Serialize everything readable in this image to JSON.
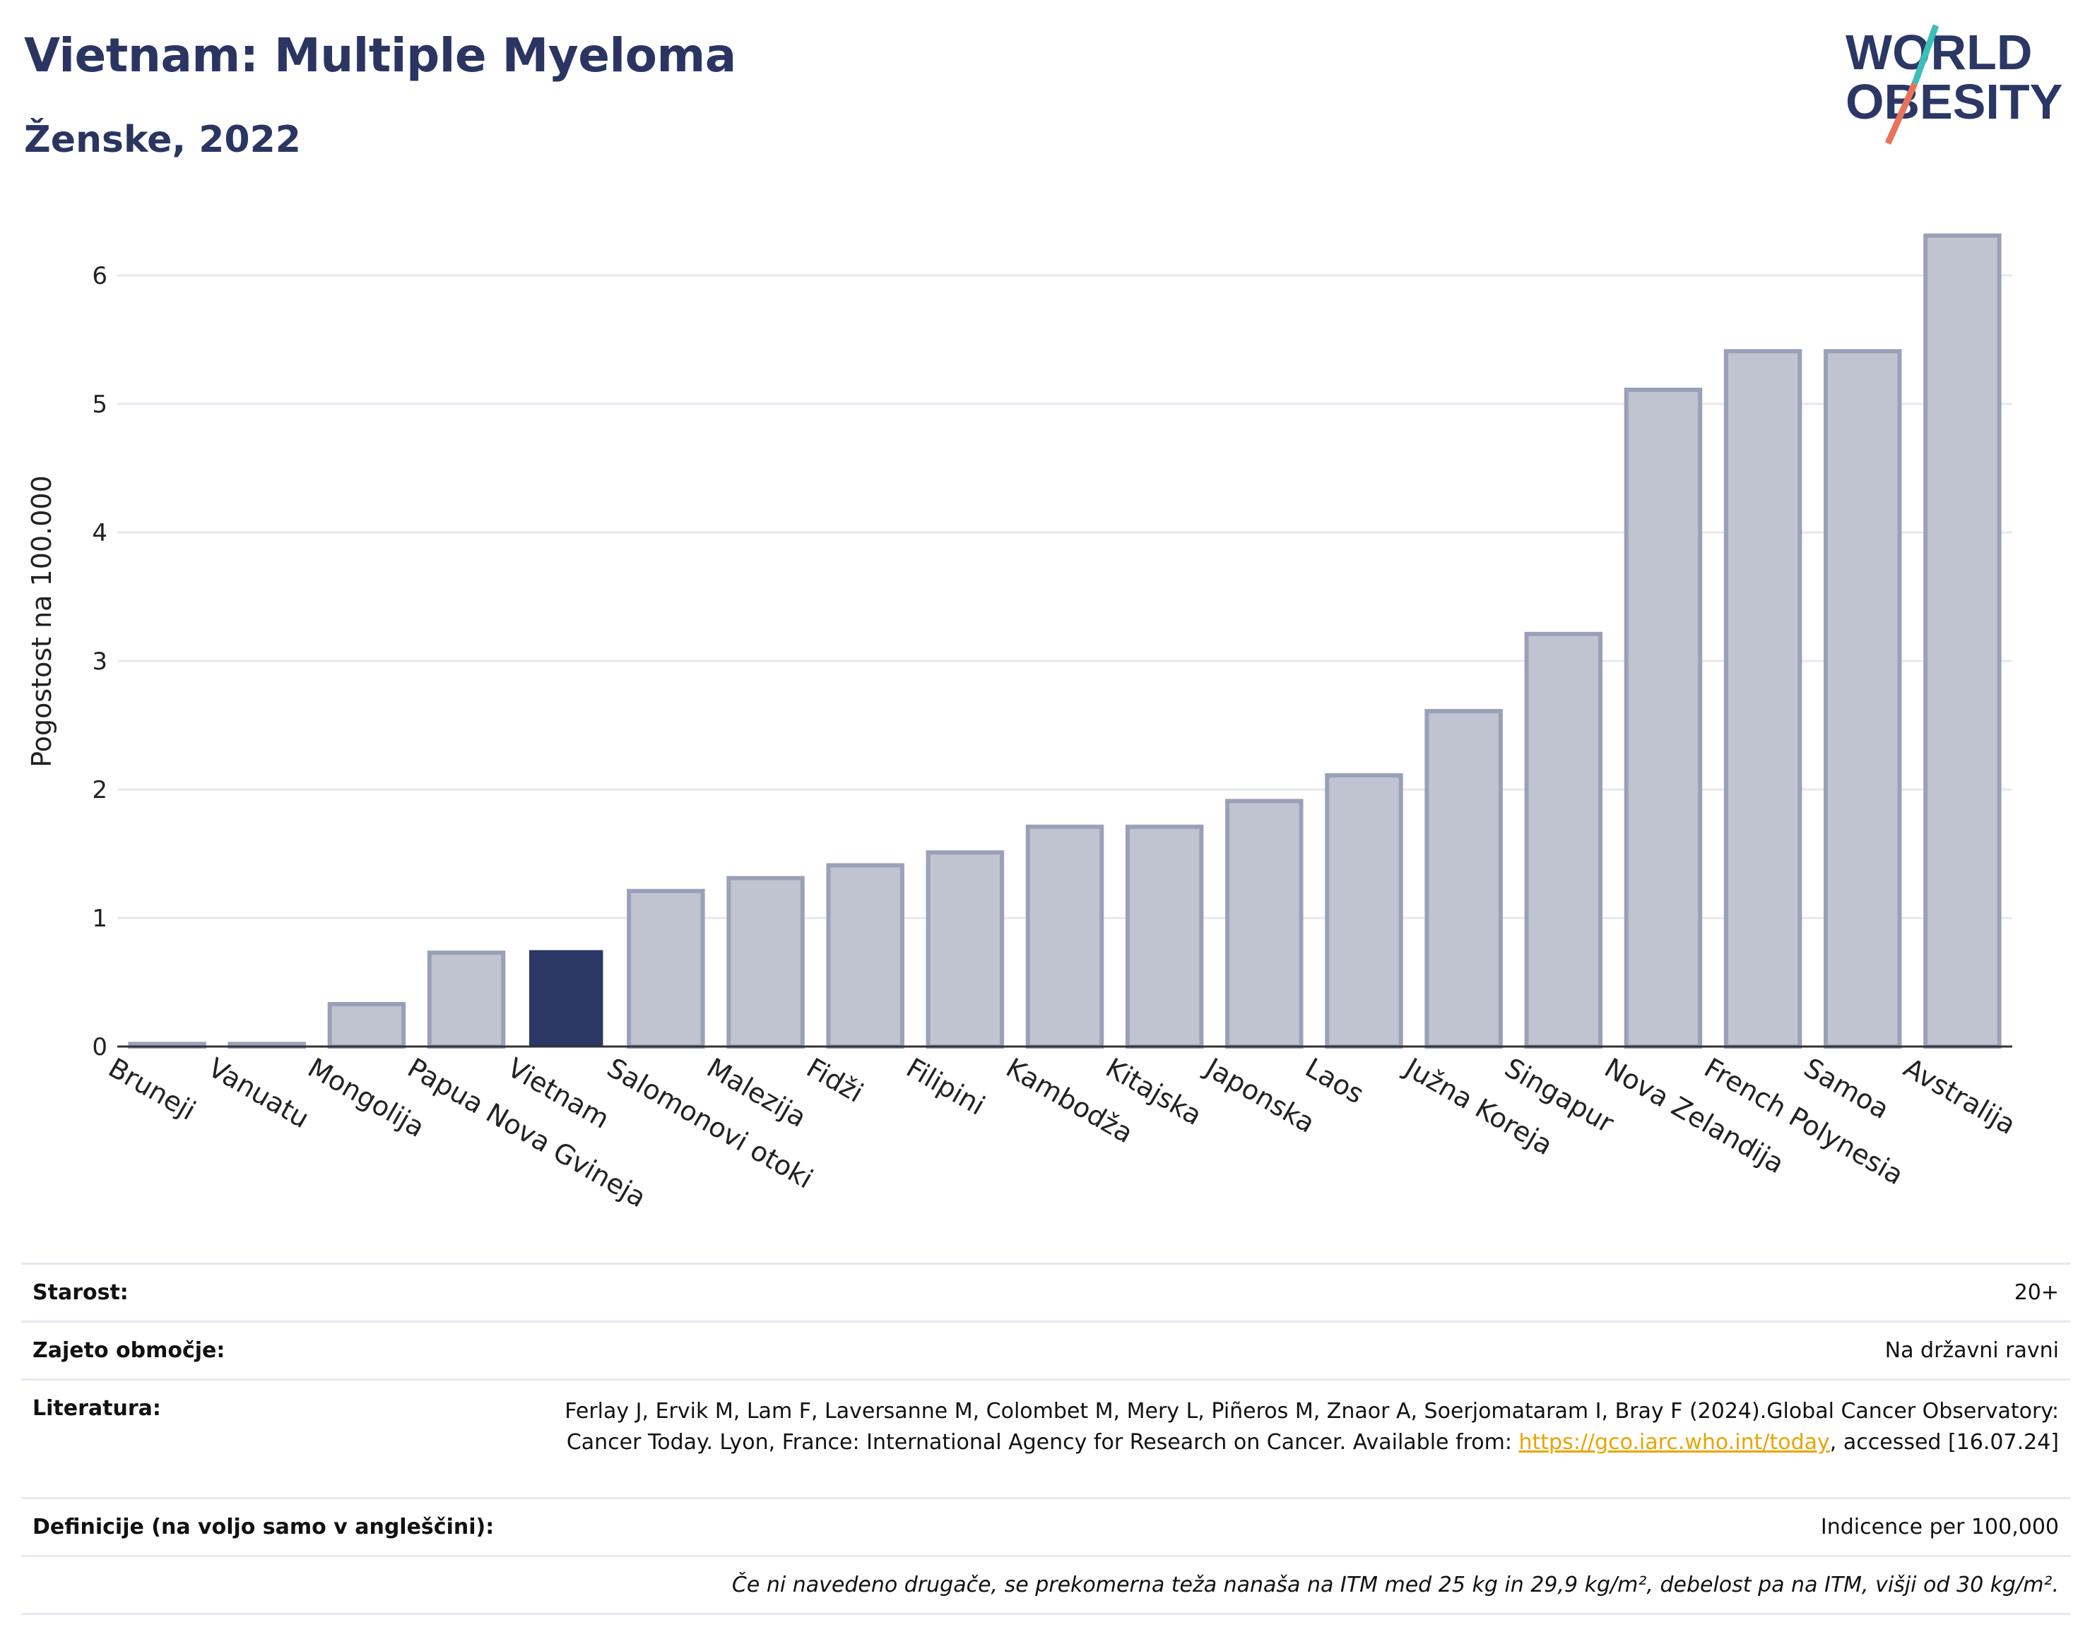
{
  "header": {
    "title": "Vietnam: Multiple Myeloma",
    "subtitle": "Ženske, 2022"
  },
  "logo": {
    "line1": "WORLD",
    "line2": "OBESITY",
    "accent_colors": [
      "#3bbfb8",
      "#e8735a"
    ]
  },
  "chart_data": {
    "type": "bar",
    "categories": [
      "Bruneji",
      "Vanuatu",
      "Mongolija",
      "Papua Nova Gvineja",
      "Vietnam",
      "Salomonovi otoki",
      "Malezija",
      "Fidži",
      "Filipini",
      "Kambodža",
      "Kitajska",
      "Japonska",
      "Laos",
      "Južna Koreja",
      "Singapur",
      "Nova Zelandija",
      "French Polynesia",
      "Samoa",
      "Avstralija"
    ],
    "values": [
      0.02,
      0.02,
      0.33,
      0.73,
      0.75,
      1.21,
      1.31,
      1.41,
      1.51,
      1.71,
      1.71,
      1.91,
      2.11,
      2.61,
      3.21,
      5.11,
      5.41,
      5.41,
      6.31
    ],
    "highlight": "Vietnam",
    "ylabel": "Pogostost na 100.000",
    "xlabel": "",
    "ylim": [
      0,
      6.5
    ],
    "yticks": [
      0,
      1,
      2,
      3,
      4,
      5,
      6
    ],
    "grid": true,
    "colors": {
      "bar": "#c0c4d1",
      "bar_edge": "#9aa0b8",
      "highlight": "#2b3765",
      "grid": "#e6e8ef",
      "axis": "#333333"
    }
  },
  "info": {
    "age_label": "Starost:",
    "age_value": "20+",
    "area_label": "Zajeto območje:",
    "area_value": "Na državni ravni",
    "ref_label": "Literatura:",
    "ref_text_1": "Ferlay J, Ervik M, Lam F, Laversanne M, Colombet M, Mery L, Piñeros M, Znaor A, Soerjomataram I, Bray F (2024).Global Cancer Observatory: Cancer Today. Lyon, France: International Agency for Research on Cancer. Available from: ",
    "ref_link": "https://gco.iarc.who.int/today",
    "ref_text_2": ", accessed [16.07.24]",
    "def_label": "Definicije (na voljo samo v angleščini):",
    "def_value": "Indicence per 100,000",
    "note": "Če ni navedeno drugače, se prekomerna teža nanaša na ITM med 25 kg in 29,9 kg/m², debelost pa na ITM, višji od 30 kg/m²."
  }
}
